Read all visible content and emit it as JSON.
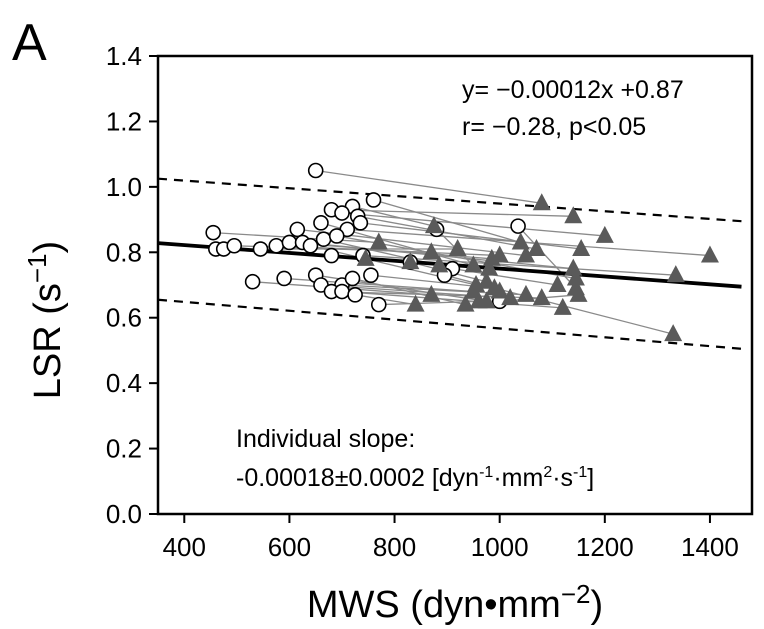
{
  "chart_data": {
    "type": "scatter",
    "panel_label": "A",
    "xlabel": "MWS (dyn•mm",
    "xlabel_sup": "−2",
    "xlabel_close": ")",
    "ylabel": "LSR (s",
    "ylabel_sup": "−1",
    "ylabel_close": ")",
    "xlim": [
      350,
      1480
    ],
    "ylim": [
      0.0,
      1.4
    ],
    "xticks": [
      400,
      600,
      800,
      1000,
      1200,
      1400
    ],
    "xtick_labels": [
      "400",
      "600",
      "800",
      "1000",
      "1200",
      "1400"
    ],
    "yticks": [
      0.0,
      0.2,
      0.4,
      0.6,
      0.8,
      1.0,
      1.2,
      1.4
    ],
    "ytick_labels": [
      "0.0",
      "0.2",
      "0.4",
      "0.6",
      "0.8",
      "1.0",
      "1.2",
      "1.4"
    ],
    "grid": false,
    "annotations": {
      "equation": "y= −0.00012x +0.87",
      "stats": "r= −0.28,  p<0.05",
      "slope_title": "Individual slope:",
      "slope_value": "-0.00018±0.0002 [dyn",
      "slope_sup1": "-1",
      "slope_mid1": "·mm",
      "slope_sup2": "2",
      "slope_mid2": "·s",
      "slope_sup3": "-1",
      "slope_close": "]"
    },
    "regression": {
      "slope": -0.00012,
      "intercept": 0.87,
      "x_range": [
        350,
        1460
      ]
    },
    "confidence_bands": [
      {
        "x": [
          350,
          1460
        ],
        "y": [
          1.025,
          0.895
        ]
      },
      {
        "x": [
          350,
          1460
        ],
        "y": [
          0.655,
          0.505
        ]
      }
    ],
    "pairs": [
      {
        "open": [
          650,
          1.05
        ],
        "filled": [
          1080,
          0.95
        ]
      },
      {
        "open": [
          680,
          0.93
        ],
        "filled": [
          1140,
          0.91
        ]
      },
      {
        "open": [
          720,
          0.94
        ],
        "filled": [
          875,
          0.88
        ]
      },
      {
        "open": [
          700,
          0.92
        ],
        "filled": [
          1200,
          0.85
        ]
      },
      {
        "open": [
          760,
          0.96
        ],
        "filled": [
          1040,
          0.83
        ]
      },
      {
        "open": [
          730,
          0.91
        ],
        "filled": [
          1070,
          0.81
        ]
      },
      {
        "open": [
          735,
          0.89
        ],
        "filled": [
          1155,
          0.81
        ]
      },
      {
        "open": [
          710,
          0.87
        ],
        "filled": [
          1400,
          0.79
        ]
      },
      {
        "open": [
          455,
          0.86
        ],
        "filled": [
          770,
          0.83
        ]
      },
      {
        "open": [
          460,
          0.81
        ],
        "filled": [
          745,
          0.78
        ]
      },
      {
        "open": [
          475,
          0.81
        ],
        "filled": [
          830,
          0.77
        ]
      },
      {
        "open": [
          495,
          0.82
        ],
        "filled": [
          870,
          0.8
        ]
      },
      {
        "open": [
          545,
          0.81
        ],
        "filled": [
          920,
          0.81
        ]
      },
      {
        "open": [
          575,
          0.82
        ],
        "filled": [
          1000,
          0.79
        ]
      },
      {
        "open": [
          600,
          0.83
        ],
        "filled": [
          985,
          0.78
        ]
      },
      {
        "open": [
          615,
          0.87
        ],
        "filled": [
          1050,
          0.79
        ]
      },
      {
        "open": [
          625,
          0.83
        ],
        "filled": [
          1140,
          0.75
        ]
      },
      {
        "open": [
          665,
          0.84
        ],
        "filled": [
          885,
          0.76
        ]
      },
      {
        "open": [
          660,
          0.89
        ],
        "filled": [
          950,
          0.76
        ]
      },
      {
        "open": [
          690,
          0.85
        ],
        "filled": [
          1145,
          0.72
        ]
      },
      {
        "open": [
          680,
          0.79
        ],
        "filled": [
          980,
          0.75
        ]
      },
      {
        "open": [
          740,
          0.79
        ],
        "filled": [
          1335,
          0.73
        ]
      },
      {
        "open": [
          830,
          0.77
        ],
        "filled": [
          975,
          0.71
        ]
      },
      {
        "open": [
          910,
          0.75
        ],
        "filled": [
          1110,
          0.7
        ]
      },
      {
        "open": [
          1035,
          0.88
        ],
        "filled": [
          1145,
          0.69
        ]
      },
      {
        "open": [
          880,
          0.87
        ],
        "filled": [
          1000,
          0.68
        ]
      },
      {
        "open": [
          530,
          0.71
        ],
        "filled": [
          870,
          0.67
        ]
      },
      {
        "open": [
          590,
          0.72
        ],
        "filled": [
          950,
          0.68
        ]
      },
      {
        "open": [
          650,
          0.73
        ],
        "filled": [
          975,
          0.65
        ]
      },
      {
        "open": [
          660,
          0.7
        ],
        "filled": [
          1020,
          0.66
        ]
      },
      {
        "open": [
          700,
          0.7
        ],
        "filled": [
          1050,
          0.67
        ]
      },
      {
        "open": [
          720,
          0.72
        ],
        "filled": [
          935,
          0.64
        ]
      },
      {
        "open": [
          680,
          0.68
        ],
        "filled": [
          1080,
          0.66
        ]
      },
      {
        "open": [
          700,
          0.68
        ],
        "filled": [
          1120,
          0.63
        ]
      },
      {
        "open": [
          725,
          0.67
        ],
        "filled": [
          840,
          0.64
        ]
      },
      {
        "open": [
          755,
          0.73
        ],
        "filled": [
          990,
          0.69
        ]
      },
      {
        "open": [
          770,
          0.64
        ],
        "filled": [
          960,
          0.65
        ]
      },
      {
        "open": [
          895,
          0.73
        ],
        "filled": [
          1330,
          0.55
        ]
      },
      {
        "open": [
          1000,
          0.65
        ],
        "filled": [
          1150,
          0.67
        ]
      },
      {
        "open": [
          640,
          0.82
        ],
        "filled": [
          955,
          0.7
        ]
      }
    ],
    "colors": {
      "regression": "#000000",
      "band": "#000000",
      "connector": "#8a8a8a",
      "open_marker_stroke": "#000000",
      "open_marker_fill": "#ffffff",
      "filled_marker": "#5a5a5a"
    }
  }
}
